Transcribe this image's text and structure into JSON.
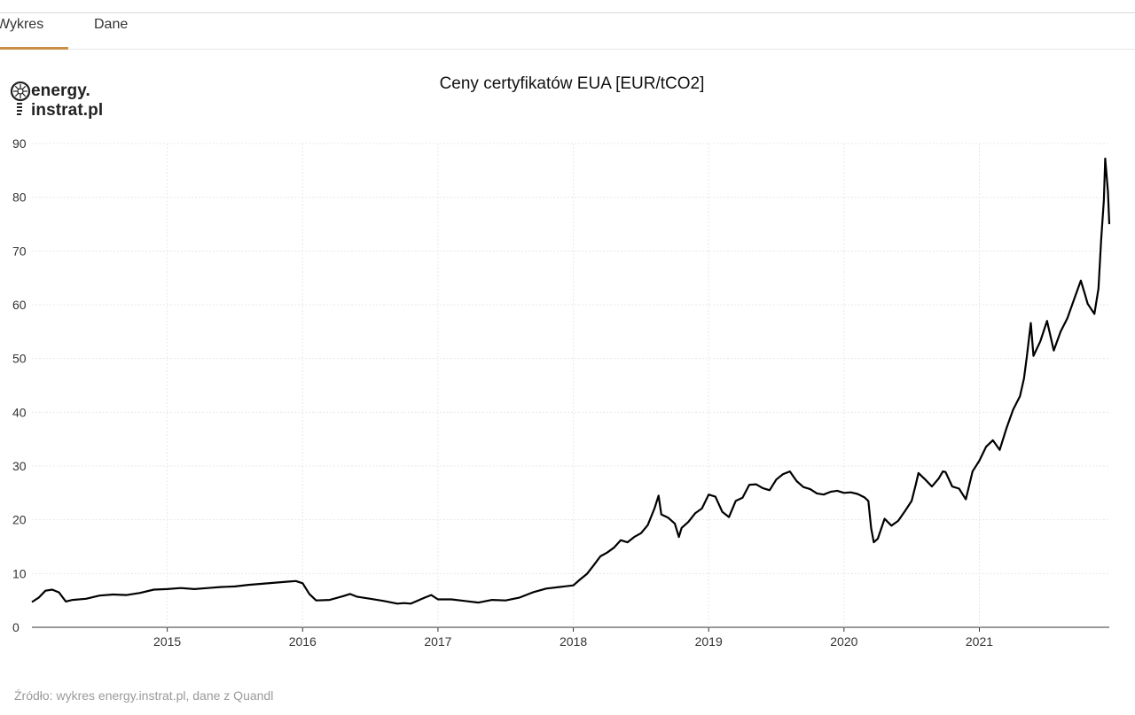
{
  "tabs": [
    {
      "label": "Wykres",
      "active": true
    },
    {
      "label": "Dane",
      "active": false
    }
  ],
  "logo": {
    "line1": "energy.",
    "line2": "instrat.pl"
  },
  "source": "Źródło: wykres energy.instrat.pl, dane z Quandl",
  "colors": {
    "accent": "#c98f45",
    "line": "#000000",
    "grid": "#e8e8e8"
  },
  "chart_data": {
    "type": "line",
    "title": "Ceny certyfikatów EUA [EUR/tCO2]",
    "xlabel": "",
    "ylabel": "",
    "ylim": [
      0,
      90
    ],
    "xlim": [
      2014.0,
      2021.96
    ],
    "yticks": [
      0,
      10,
      20,
      30,
      40,
      50,
      60,
      70,
      80,
      90
    ],
    "xticks": [
      2015,
      2016,
      2017,
      2018,
      2019,
      2020,
      2021
    ],
    "grid": true,
    "legend": "none",
    "series": [
      {
        "name": "EUA",
        "x": [
          2014.0,
          2014.05,
          2014.1,
          2014.15,
          2014.2,
          2014.25,
          2014.3,
          2014.4,
          2014.5,
          2014.6,
          2014.7,
          2014.8,
          2014.9,
          2015.0,
          2015.1,
          2015.2,
          2015.3,
          2015.4,
          2015.5,
          2015.6,
          2015.7,
          2015.8,
          2015.9,
          2015.95,
          2016.0,
          2016.05,
          2016.1,
          2016.2,
          2016.3,
          2016.35,
          2016.4,
          2016.5,
          2016.6,
          2016.7,
          2016.75,
          2016.8,
          2016.9,
          2016.95,
          2017.0,
          2017.1,
          2017.2,
          2017.3,
          2017.4,
          2017.5,
          2017.6,
          2017.7,
          2017.8,
          2017.9,
          2018.0,
          2018.05,
          2018.1,
          2018.15,
          2018.2,
          2018.25,
          2018.3,
          2018.35,
          2018.4,
          2018.45,
          2018.5,
          2018.55,
          2018.6,
          2018.63,
          2018.65,
          2018.7,
          2018.75,
          2018.78,
          2018.8,
          2018.85,
          2018.9,
          2018.95,
          2019.0,
          2019.05,
          2019.1,
          2019.15,
          2019.2,
          2019.25,
          2019.3,
          2019.35,
          2019.4,
          2019.45,
          2019.5,
          2019.55,
          2019.6,
          2019.65,
          2019.7,
          2019.75,
          2019.8,
          2019.85,
          2019.9,
          2019.95,
          2020.0,
          2020.05,
          2020.1,
          2020.15,
          2020.18,
          2020.2,
          2020.22,
          2020.25,
          2020.3,
          2020.35,
          2020.4,
          2020.45,
          2020.5,
          2020.53,
          2020.55,
          2020.6,
          2020.65,
          2020.7,
          2020.73,
          2020.75,
          2020.8,
          2020.85,
          2020.9,
          2020.95,
          2021.0,
          2021.05,
          2021.1,
          2021.15,
          2021.2,
          2021.25,
          2021.3,
          2021.33,
          2021.35,
          2021.38,
          2021.4,
          2021.45,
          2021.5,
          2021.55,
          2021.6,
          2021.65,
          2021.7,
          2021.75,
          2021.78,
          2021.8,
          2021.85,
          2021.88,
          2021.9,
          2021.92,
          2021.93,
          2021.95,
          2021.96
        ],
        "y": [
          4.7,
          5.5,
          6.8,
          7.0,
          6.5,
          4.8,
          5.1,
          5.3,
          5.9,
          6.1,
          6.0,
          6.4,
          7.0,
          7.1,
          7.3,
          7.1,
          7.3,
          7.5,
          7.6,
          7.9,
          8.1,
          8.3,
          8.5,
          8.6,
          8.2,
          6.2,
          5.0,
          5.1,
          5.8,
          6.2,
          5.7,
          5.3,
          4.9,
          4.4,
          4.5,
          4.4,
          5.5,
          6.0,
          5.2,
          5.2,
          4.9,
          4.6,
          5.1,
          5.0,
          5.5,
          6.5,
          7.2,
          7.5,
          7.8,
          8.9,
          9.9,
          11.5,
          13.2,
          13.9,
          14.8,
          16.2,
          15.8,
          16.8,
          17.5,
          19.0,
          22.1,
          24.5,
          21.0,
          20.4,
          19.3,
          16.8,
          18.5,
          19.6,
          21.2,
          22.1,
          24.7,
          24.3,
          21.5,
          20.5,
          23.5,
          24.1,
          26.5,
          26.6,
          25.9,
          25.5,
          27.5,
          28.5,
          29.0,
          27.2,
          26.1,
          25.7,
          24.9,
          24.7,
          25.2,
          25.4,
          25.0,
          25.1,
          24.8,
          24.2,
          23.5,
          18.5,
          15.8,
          16.5,
          20.2,
          18.9,
          19.8,
          21.6,
          23.5,
          26.5,
          28.7,
          27.5,
          26.2,
          27.7,
          29.0,
          28.9,
          26.2,
          25.8,
          23.8,
          29.0,
          31.0,
          33.6,
          34.8,
          33.0,
          37.0,
          40.5,
          43.0,
          46.3,
          50.2,
          56.6,
          50.5,
          53.2,
          57.0,
          51.5,
          55.0,
          57.5,
          61.0,
          64.5,
          62.0,
          60.2,
          58.3,
          63.0,
          72.0,
          79.5,
          87.2,
          81.0,
          75.0
        ]
      }
    ]
  }
}
